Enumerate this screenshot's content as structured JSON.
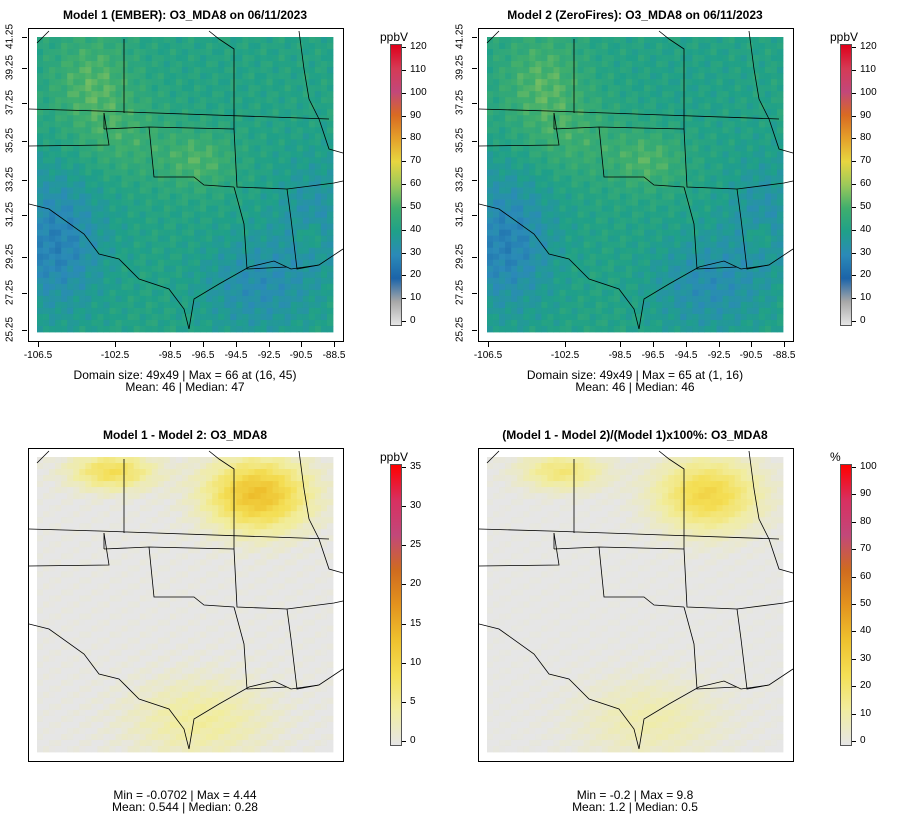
{
  "panels": [
    {
      "id": "p1",
      "title": "Model 1 (EMBER): O3_MDA8 on 06/11/2023",
      "kind": "conc",
      "has_axes": true,
      "stats_line1": "Domain size: 49x49 | Max = 66 at (16, 45)",
      "stats_line2": "Mean: 46 |  Median: 47",
      "colorbar": {
        "unit": "ppbV",
        "ticks": [
          "120",
          "110",
          "100",
          "90",
          "80",
          "70",
          "60",
          "50",
          "40",
          "30",
          "20",
          "10",
          "0"
        ]
      }
    },
    {
      "id": "p2",
      "title": "Model 2 (ZeroFires): O3_MDA8 on 06/11/2023",
      "kind": "conc",
      "has_axes": true,
      "stats_line1": "Domain size: 49x49 | Max = 65 at (1, 16)",
      "stats_line2": "Mean: 46 |  Median: 46",
      "colorbar": {
        "unit": "ppbV",
        "ticks": [
          "120",
          "110",
          "100",
          "90",
          "80",
          "70",
          "60",
          "50",
          "40",
          "30",
          "20",
          "10",
          "0"
        ]
      }
    },
    {
      "id": "p3",
      "title": "Model 1 - Model 2: O3_MDA8",
      "kind": "diff",
      "has_axes": false,
      "stats_line1": "Min = -0.0702 | Max = 4.44",
      "stats_line2": "Mean: 0.544 |  Median: 0.28",
      "colorbar": {
        "unit": "ppbV",
        "ticks": [
          "35",
          "30",
          "25",
          "20",
          "15",
          "10",
          "5",
          "0"
        ]
      }
    },
    {
      "id": "p4",
      "title": "(Model 1 - Model 2)/(Model 1)x100%: O3_MDA8",
      "kind": "pct",
      "has_axes": false,
      "stats_line1": "Min = -0.2 | Max = 9.8",
      "stats_line2": "Mean: 1.2 |  Median: 0.5",
      "colorbar": {
        "unit": "%",
        "ticks": [
          "100",
          "90",
          "80",
          "70",
          "60",
          "50",
          "40",
          "30",
          "20",
          "10",
          "0"
        ]
      }
    }
  ],
  "axes": {
    "x_ticks": [
      "-106.5",
      "-102.5",
      "-98.5",
      "-96.5",
      "-94.5",
      "-92.5",
      "-90.5",
      "-88.5"
    ],
    "y_ticks": [
      "41.25",
      "39.25",
      "37.25",
      "35.25",
      "33.25",
      "31.25",
      "29.25",
      "27.25",
      "25.25"
    ]
  },
  "colors": {
    "conc_scale": [
      "#e6e6e6",
      "#a8a8a8",
      "#1b64a9",
      "#2b8ab8",
      "#1fa089",
      "#3fae6d",
      "#9cc95a",
      "#e7d640",
      "#e4a02a",
      "#d86a22",
      "#c2477a",
      "#d63a55",
      "#e0001a"
    ],
    "diff_scale": [
      "#e6e6e6",
      "#f1eda0",
      "#f4df55",
      "#eec12e",
      "#e3931e",
      "#cf6b1f",
      "#c2477a",
      "#d83060",
      "#ff0000"
    ]
  }
}
